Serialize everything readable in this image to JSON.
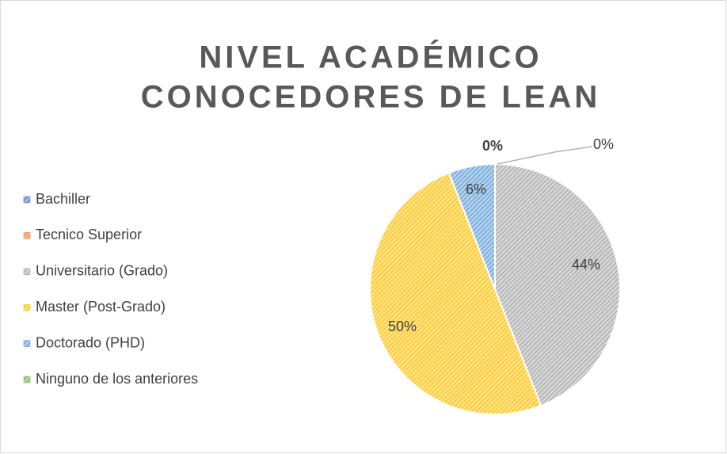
{
  "chart_data": {
    "type": "pie",
    "title": [
      "NIVEL ACADÉMICO",
      "CONOCEDORES DE LEAN"
    ],
    "categories": [
      "Bachiller",
      "Tecnico Superior",
      "Universitario (Grado)",
      "Master (Post-Grado)",
      "Doctorado (PHD)",
      "Ninguno de los anteriores"
    ],
    "values": [
      0,
      0,
      44,
      50,
      6,
      0
    ],
    "value_labels": [
      "0%",
      null,
      "44%",
      "50%",
      "6%",
      "0%"
    ],
    "colors": [
      "#4472c4",
      "#ed7d31",
      "#a5a5a5",
      "#ffc000",
      "#5b9bd5",
      "#70ad47"
    ],
    "legend": "left"
  }
}
